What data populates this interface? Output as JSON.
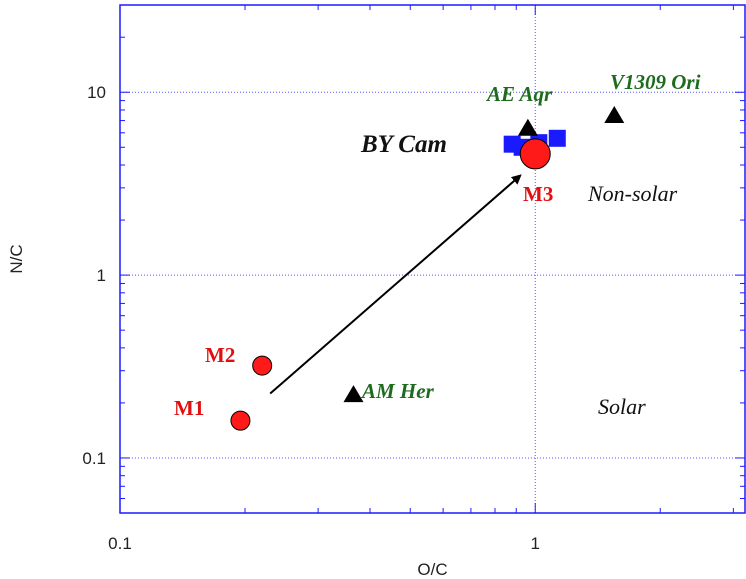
{
  "chart_data": {
    "type": "scatter",
    "title": "",
    "xlabel": "O/C",
    "ylabel": "N/C",
    "xscale": "log",
    "yscale": "log",
    "xlim": [
      0.1,
      3.2
    ],
    "ylim": [
      0.05,
      30
    ],
    "x_ticks": [
      {
        "value": 0.1,
        "label": "0.1"
      },
      {
        "value": 1,
        "label": "1"
      }
    ],
    "y_ticks": [
      {
        "value": 0.1,
        "label": "0.1"
      },
      {
        "value": 1,
        "label": "1"
      },
      {
        "value": 10,
        "label": "10"
      }
    ],
    "grid": true,
    "series": [
      {
        "marker": "circle",
        "color": "#ff1a1a",
        "points": [
          {
            "label": "M1",
            "x": 0.195,
            "y": 0.16,
            "size": "small"
          },
          {
            "label": "M2",
            "x": 0.22,
            "y": 0.32,
            "size": "small"
          },
          {
            "label": "M3",
            "x": 1.0,
            "y": 4.6,
            "size": "large"
          }
        ]
      },
      {
        "marker": "triangle",
        "color": "#000000",
        "points": [
          {
            "label": "AM Her",
            "x": 0.365,
            "y": 0.22
          },
          {
            "label": "AE Aqr",
            "x": 0.96,
            "y": 6.3
          },
          {
            "label": "V1309 Ori",
            "x": 1.55,
            "y": 7.4
          }
        ]
      },
      {
        "marker": "square",
        "color": "#1a1aff",
        "points": [
          {
            "label": "BY Cam",
            "x": 0.88,
            "y": 5.2
          },
          {
            "label": "BY Cam",
            "x": 0.93,
            "y": 5.0
          },
          {
            "label": "BY Cam",
            "x": 1.02,
            "y": 5.3
          },
          {
            "label": "BY Cam",
            "x": 1.13,
            "y": 5.6
          }
        ]
      }
    ],
    "arrow": {
      "from": {
        "x": 0.23,
        "y": 0.225
      },
      "to": {
        "x": 0.92,
        "y": 3.5
      }
    },
    "annotations": {
      "star_labels": [
        "AE Aqr",
        "V1309 Ori",
        "AM Her"
      ],
      "by_cam": "BY Cam",
      "model_labels": [
        "M1",
        "M2",
        "M3"
      ],
      "regions": [
        "Non-solar",
        "Solar"
      ]
    }
  }
}
